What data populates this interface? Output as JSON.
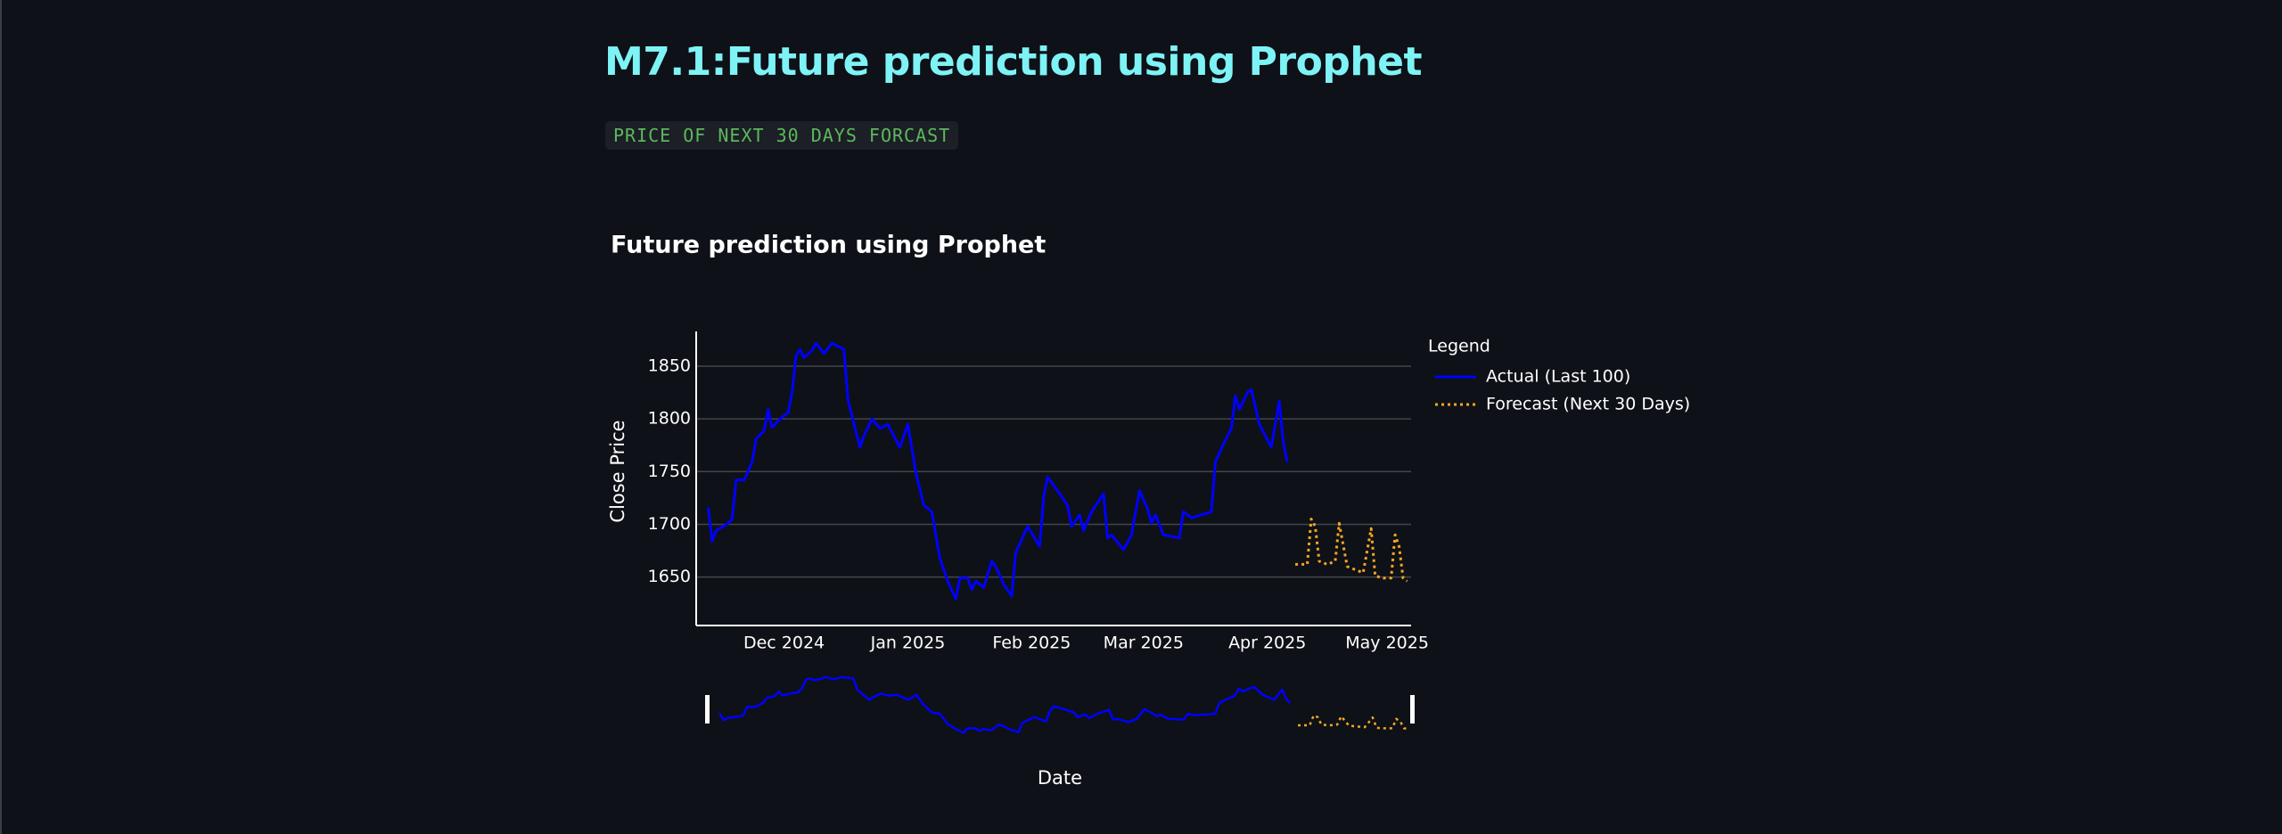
{
  "header": {
    "title": "M7.1:Future prediction using Prophet",
    "badge": "PRICE OF NEXT 30 DAYS FORCAST"
  },
  "chart_data": {
    "type": "line",
    "title": "Future prediction using Prophet",
    "xlabel": "Date",
    "ylabel": "Close Price",
    "legend_title": "Legend",
    "series": [
      {
        "name": "Actual (Last 100)",
        "color": "#0000ff",
        "dash": "solid",
        "x": [
          "2024-11-12",
          "2024-11-13",
          "2024-11-14",
          "2024-11-17",
          "2024-11-18",
          "2024-11-19",
          "2024-11-21",
          "2024-11-23",
          "2024-11-24",
          "2024-11-26",
          "2024-11-27",
          "2024-11-28",
          "2024-11-30",
          "2024-12-02",
          "2024-12-03",
          "2024-12-04",
          "2024-12-05",
          "2024-12-06",
          "2024-12-08",
          "2024-12-09",
          "2024-12-11",
          "2024-12-13",
          "2024-12-16",
          "2024-12-17",
          "2024-12-20",
          "2024-12-21",
          "2024-12-23",
          "2024-12-25",
          "2024-12-27",
          "2024-12-29",
          "2024-12-30",
          "2025-01-01",
          "2025-01-03",
          "2025-01-05",
          "2025-01-07",
          "2025-01-09",
          "2025-01-11",
          "2025-01-13",
          "2025-01-14",
          "2025-01-16",
          "2025-01-17",
          "2025-01-18",
          "2025-01-20",
          "2025-01-22",
          "2025-01-23",
          "2025-01-25",
          "2025-01-27",
          "2025-01-28",
          "2025-01-31",
          "2025-02-03",
          "2025-02-04",
          "2025-02-05",
          "2025-02-08",
          "2025-02-10",
          "2025-02-11",
          "2025-02-13",
          "2025-02-14",
          "2025-02-16",
          "2025-02-19",
          "2025-02-20",
          "2025-02-21",
          "2025-02-24",
          "2025-02-26",
          "2025-02-28",
          "2025-03-02",
          "2025-03-03",
          "2025-03-04",
          "2025-03-06",
          "2025-03-10",
          "2025-03-11",
          "2025-03-13",
          "2025-03-18",
          "2025-03-19",
          "2025-03-21",
          "2025-03-23",
          "2025-03-24",
          "2025-03-25",
          "2025-03-27",
          "2025-03-28",
          "2025-03-30",
          "2025-04-02",
          "2025-04-03",
          "2025-04-04",
          "2025-04-05",
          "2025-04-06"
        ],
        "values": [
          1716,
          1684,
          1694,
          1701,
          1705,
          1742,
          1742,
          1759,
          1781,
          1789,
          1809,
          1792,
          1800,
          1806,
          1825,
          1860,
          1866,
          1858,
          1865,
          1872,
          1862,
          1872,
          1866,
          1818,
          1773,
          1784,
          1800,
          1791,
          1795,
          1780,
          1773,
          1795,
          1749,
          1718,
          1712,
          1668,
          1646,
          1629,
          1649,
          1649,
          1638,
          1646,
          1640,
          1665,
          1660,
          1643,
          1632,
          1673,
          1698,
          1679,
          1726,
          1745,
          1729,
          1718,
          1698,
          1709,
          1694,
          1712,
          1729,
          1687,
          1690,
          1676,
          1690,
          1732,
          1715,
          1701,
          1709,
          1690,
          1687,
          1712,
          1706,
          1712,
          1759,
          1776,
          1791,
          1822,
          1809,
          1825,
          1828,
          1795,
          1773,
          1795,
          1817,
          1778,
          1759
        ]
      },
      {
        "name": "Forecast (Next 30 Days)",
        "color": "#f5a623",
        "dash": "dot",
        "x": [
          "2025-04-08",
          "2025-04-11",
          "2025-04-12",
          "2025-04-13",
          "2025-04-14",
          "2025-04-16",
          "2025-04-18",
          "2025-04-19",
          "2025-04-21",
          "2025-04-23",
          "2025-04-25",
          "2025-04-27",
          "2025-04-28",
          "2025-04-30",
          "2025-05-02",
          "2025-05-03",
          "2025-05-04",
          "2025-05-05",
          "2025-05-06"
        ],
        "values": [
          1662,
          1662,
          1705,
          1698,
          1665,
          1662,
          1665,
          1701,
          1660,
          1657,
          1654,
          1696,
          1651,
          1649,
          1649,
          1690,
          1679,
          1649,
          1646
        ]
      }
    ],
    "xlim": [
      "2024-11-09",
      "2025-05-07"
    ],
    "xticks": [
      {
        "value": "2024-12-01",
        "label": "Dec 2024"
      },
      {
        "value": "2025-01-01",
        "label": "Jan 2025"
      },
      {
        "value": "2025-02-01",
        "label": "Feb 2025"
      },
      {
        "value": "2025-03-01",
        "label": "Mar 2025"
      },
      {
        "value": "2025-04-01",
        "label": "Apr 2025"
      },
      {
        "value": "2025-05-01",
        "label": "May 2025"
      }
    ],
    "ylim": [
      1604,
      1883
    ],
    "yticks": [
      1650,
      1700,
      1750,
      1800,
      1850
    ],
    "grid": true,
    "range_slider": true
  }
}
